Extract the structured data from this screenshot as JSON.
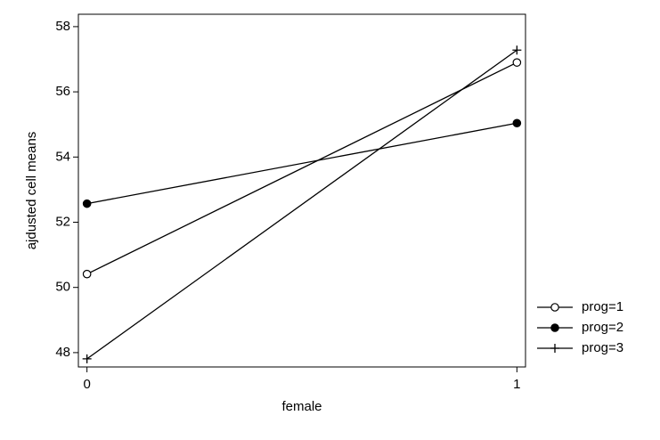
{
  "chart_data": {
    "type": "line",
    "x_label": "female",
    "y_label": "ajdusted cell means",
    "x": [
      0,
      1
    ],
    "series": [
      {
        "name": "prog=1",
        "color": "#000000",
        "marker": "circle-open",
        "values": [
          50.41,
          56.9
        ]
      },
      {
        "name": "prog=2",
        "color": "#000000",
        "marker": "circle-filled",
        "values": [
          52.57,
          55.04
        ]
      },
      {
        "name": "prog=3",
        "color": "#000000",
        "marker": "plus",
        "values": [
          47.81,
          57.28
        ]
      }
    ],
    "xlim": [
      -0.02,
      1.02
    ],
    "xticks": [
      0,
      1
    ],
    "ylim": [
      47.56,
      58.38
    ],
    "yticks": [
      48,
      50,
      52,
      54,
      56,
      58
    ],
    "legend": "right"
  }
}
